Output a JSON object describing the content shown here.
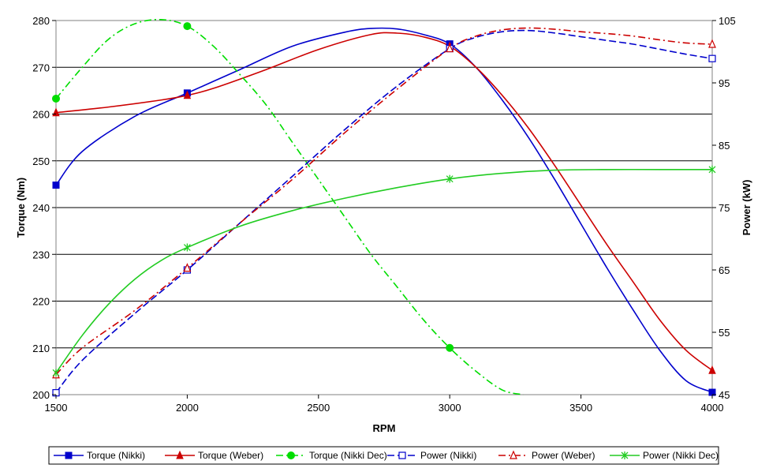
{
  "chart_data": {
    "type": "line",
    "title": "",
    "xlabel": "RPM",
    "ylabel_left": "Torque (Nm)",
    "ylabel_right": "Power (kW)",
    "xlim": [
      1500,
      4000
    ],
    "ylim_left": [
      200,
      280
    ],
    "ylim_right": [
      45,
      105
    ],
    "x_ticks": [
      1500,
      2000,
      2500,
      3000,
      3500,
      4000
    ],
    "y_left_ticks": [
      200,
      210,
      220,
      230,
      240,
      250,
      260,
      270,
      280
    ],
    "y_right_ticks": [
      45,
      55,
      65,
      75,
      85,
      95,
      105
    ],
    "grid": "horizontal",
    "legend_position": "bottom",
    "series": [
      {
        "name": "Torque (Nikki)",
        "axis": "left",
        "color": "#0000cc",
        "dash": "solid",
        "marker": "filled-square",
        "marker_x": [
          1500,
          2000,
          3000,
          4000
        ],
        "points": [
          [
            1500,
            244.8
          ],
          [
            1600,
            252
          ],
          [
            1800,
            259.5
          ],
          [
            2000,
            264.5
          ],
          [
            2200,
            269.5
          ],
          [
            2400,
            274.5
          ],
          [
            2600,
            277.5
          ],
          [
            2700,
            278.3
          ],
          [
            2800,
            278.2
          ],
          [
            2900,
            277
          ],
          [
            3000,
            275
          ],
          [
            3100,
            270
          ],
          [
            3200,
            263
          ],
          [
            3300,
            255
          ],
          [
            3400,
            246
          ],
          [
            3500,
            236.5
          ],
          [
            3600,
            227
          ],
          [
            3700,
            218
          ],
          [
            3800,
            209.5
          ],
          [
            3900,
            203
          ],
          [
            4000,
            200.5
          ]
        ]
      },
      {
        "name": "Torque (Weber)",
        "axis": "left",
        "color": "#cc0000",
        "dash": "solid",
        "marker": "filled-triangle",
        "marker_x": [
          1500,
          2000,
          3000,
          4000
        ],
        "points": [
          [
            1500,
            260.3
          ],
          [
            1700,
            261.5
          ],
          [
            1900,
            263
          ],
          [
            2000,
            264
          ],
          [
            2100,
            265.5
          ],
          [
            2300,
            269.5
          ],
          [
            2500,
            273.8
          ],
          [
            2700,
            277
          ],
          [
            2800,
            277.3
          ],
          [
            2900,
            276.5
          ],
          [
            3000,
            274.5
          ],
          [
            3100,
            270
          ],
          [
            3200,
            264
          ],
          [
            3300,
            257
          ],
          [
            3400,
            249
          ],
          [
            3500,
            240.5
          ],
          [
            3600,
            232
          ],
          [
            3700,
            224
          ],
          [
            3800,
            216
          ],
          [
            3900,
            209.5
          ],
          [
            4000,
            205.2
          ]
        ]
      },
      {
        "name": "Torque (Nikki Dec)",
        "axis": "left",
        "color": "#00dd00",
        "dash": "dashdot",
        "marker": "filled-circle",
        "marker_x": [
          1500,
          2000,
          3000
        ],
        "points": [
          [
            1500,
            263.3
          ],
          [
            1600,
            270
          ],
          [
            1700,
            276
          ],
          [
            1800,
            279.3
          ],
          [
            1900,
            280.2
          ],
          [
            2000,
            278.8
          ],
          [
            2100,
            274.5
          ],
          [
            2200,
            268.5
          ],
          [
            2300,
            262
          ],
          [
            2400,
            254
          ],
          [
            2500,
            246
          ],
          [
            2600,
            238
          ],
          [
            2700,
            230
          ],
          [
            2800,
            223
          ],
          [
            2900,
            216
          ],
          [
            3000,
            210
          ],
          [
            3100,
            205
          ],
          [
            3200,
            201
          ],
          [
            3280,
            200
          ]
        ]
      },
      {
        "name": "Power (Nikki)",
        "axis": "right",
        "color": "#0000cc",
        "dash": "dashed",
        "marker": "open-square",
        "marker_x": [
          1500,
          2000,
          3000,
          4000
        ],
        "points": [
          [
            1500,
            45.3
          ],
          [
            1600,
            50.5
          ],
          [
            1800,
            58
          ],
          [
            2000,
            65
          ],
          [
            2200,
            72.5
          ],
          [
            2400,
            80
          ],
          [
            2600,
            87.5
          ],
          [
            2800,
            94.5
          ],
          [
            3000,
            100.5
          ],
          [
            3100,
            102.3
          ],
          [
            3200,
            103.2
          ],
          [
            3300,
            103.4
          ],
          [
            3400,
            103
          ],
          [
            3500,
            102.4
          ],
          [
            3600,
            101.8
          ],
          [
            3700,
            101.2
          ],
          [
            3800,
            100.4
          ],
          [
            3900,
            99.6
          ],
          [
            4000,
            98.9
          ]
        ]
      },
      {
        "name": "Power (Weber)",
        "axis": "right",
        "color": "#cc0000",
        "dash": "dashdot",
        "marker": "open-triangle",
        "marker_x": [
          1500,
          2000,
          3000,
          4000
        ],
        "points": [
          [
            1500,
            48.2
          ],
          [
            1600,
            52.5
          ],
          [
            1800,
            58.5
          ],
          [
            2000,
            65.3
          ],
          [
            2200,
            72.5
          ],
          [
            2400,
            79.5
          ],
          [
            2600,
            87
          ],
          [
            2800,
            94
          ],
          [
            3000,
            100.5
          ],
          [
            3100,
            102.5
          ],
          [
            3200,
            103.5
          ],
          [
            3300,
            103.8
          ],
          [
            3400,
            103.6
          ],
          [
            3500,
            103.2
          ],
          [
            3600,
            102.9
          ],
          [
            3700,
            102.5
          ],
          [
            3800,
            101.9
          ],
          [
            3900,
            101.4
          ],
          [
            4000,
            101.2
          ]
        ]
      },
      {
        "name": "Power (Nikki Dec)",
        "axis": "right",
        "color": "#22cc22",
        "dash": "solid",
        "marker": "asterisk",
        "marker_x": [
          1500,
          2000,
          3000,
          4000
        ],
        "points": [
          [
            1500,
            48.5
          ],
          [
            1600,
            54.5
          ],
          [
            1700,
            59.5
          ],
          [
            1800,
            63.5
          ],
          [
            1900,
            66.5
          ],
          [
            2000,
            68.6
          ],
          [
            2200,
            72
          ],
          [
            2400,
            74.5
          ],
          [
            2600,
            76.5
          ],
          [
            2800,
            78.2
          ],
          [
            3000,
            79.6
          ],
          [
            3200,
            80.5
          ],
          [
            3400,
            81
          ],
          [
            3600,
            81.1
          ],
          [
            3800,
            81.1
          ],
          [
            4000,
            81.1
          ]
        ]
      }
    ]
  }
}
